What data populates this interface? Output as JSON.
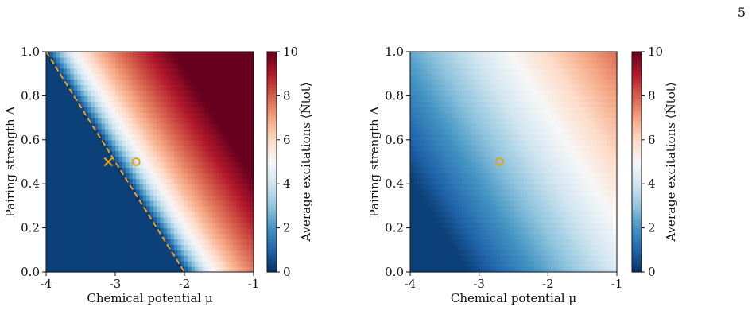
{
  "page_number": "5",
  "colors": {
    "colormap": [
      "#053061",
      "#2166ac",
      "#4393c3",
      "#92c5de",
      "#d1e5f0",
      "#f7f7f7",
      "#fddbc7",
      "#f4a582",
      "#d6604d",
      "#b2182b",
      "#67001f"
    ],
    "marker": "#e8a317",
    "dashed_line": "#e8a317"
  },
  "chart_data": [
    {
      "type": "heatmap",
      "title": "",
      "xlabel": "Chemical potential μ",
      "ylabel": "Pairing strength Δ",
      "xlim": [
        -4,
        -1
      ],
      "ylim": [
        0.0,
        1.0
      ],
      "x_ticks": [
        "-4",
        "-3",
        "-2",
        "-1"
      ],
      "y_ticks": [
        "0.0",
        "0.2",
        "0.4",
        "0.6",
        "0.8",
        "1.0"
      ],
      "colorbar": {
        "label": "Average excitations ⟨N̂tot⟩",
        "range": [
          0,
          10
        ],
        "ticks": [
          "0",
          "2",
          "4",
          "6",
          "8",
          "10"
        ]
      },
      "field": {
        "description_free": true,
        "boundary_line": {
          "points": [
            [
              -4,
              1.0
            ],
            [
              -2,
              0.0
            ]
          ],
          "style": "dashed"
        },
        "scale": 2.9,
        "max_value": 10
      },
      "markers": [
        {
          "shape": "x",
          "mu": -3.1,
          "delta": 0.5
        },
        {
          "shape": "o",
          "mu": -2.7,
          "delta": 0.5
        }
      ]
    },
    {
      "type": "heatmap",
      "title": "",
      "xlabel": "Chemical potential μ",
      "ylabel": "Pairing strength Δ",
      "xlim": [
        -4,
        -1
      ],
      "ylim": [
        0.0,
        1.0
      ],
      "x_ticks": [
        "-4",
        "-3",
        "-2",
        "-1"
      ],
      "y_ticks": [
        "0.0",
        "0.2",
        "0.4",
        "0.6",
        "0.8",
        "1.0"
      ],
      "colorbar": {
        "label": "Average excitations ⟨N̂tot⟩",
        "range": [
          0,
          10
        ],
        "ticks": [
          "0",
          "2",
          "4",
          "6",
          "8",
          "10"
        ]
      },
      "field": {
        "description_free": true,
        "scale": 1.35,
        "max_value": 10
      },
      "markers": [
        {
          "shape": "o",
          "mu": -2.7,
          "delta": 0.5
        }
      ]
    }
  ]
}
